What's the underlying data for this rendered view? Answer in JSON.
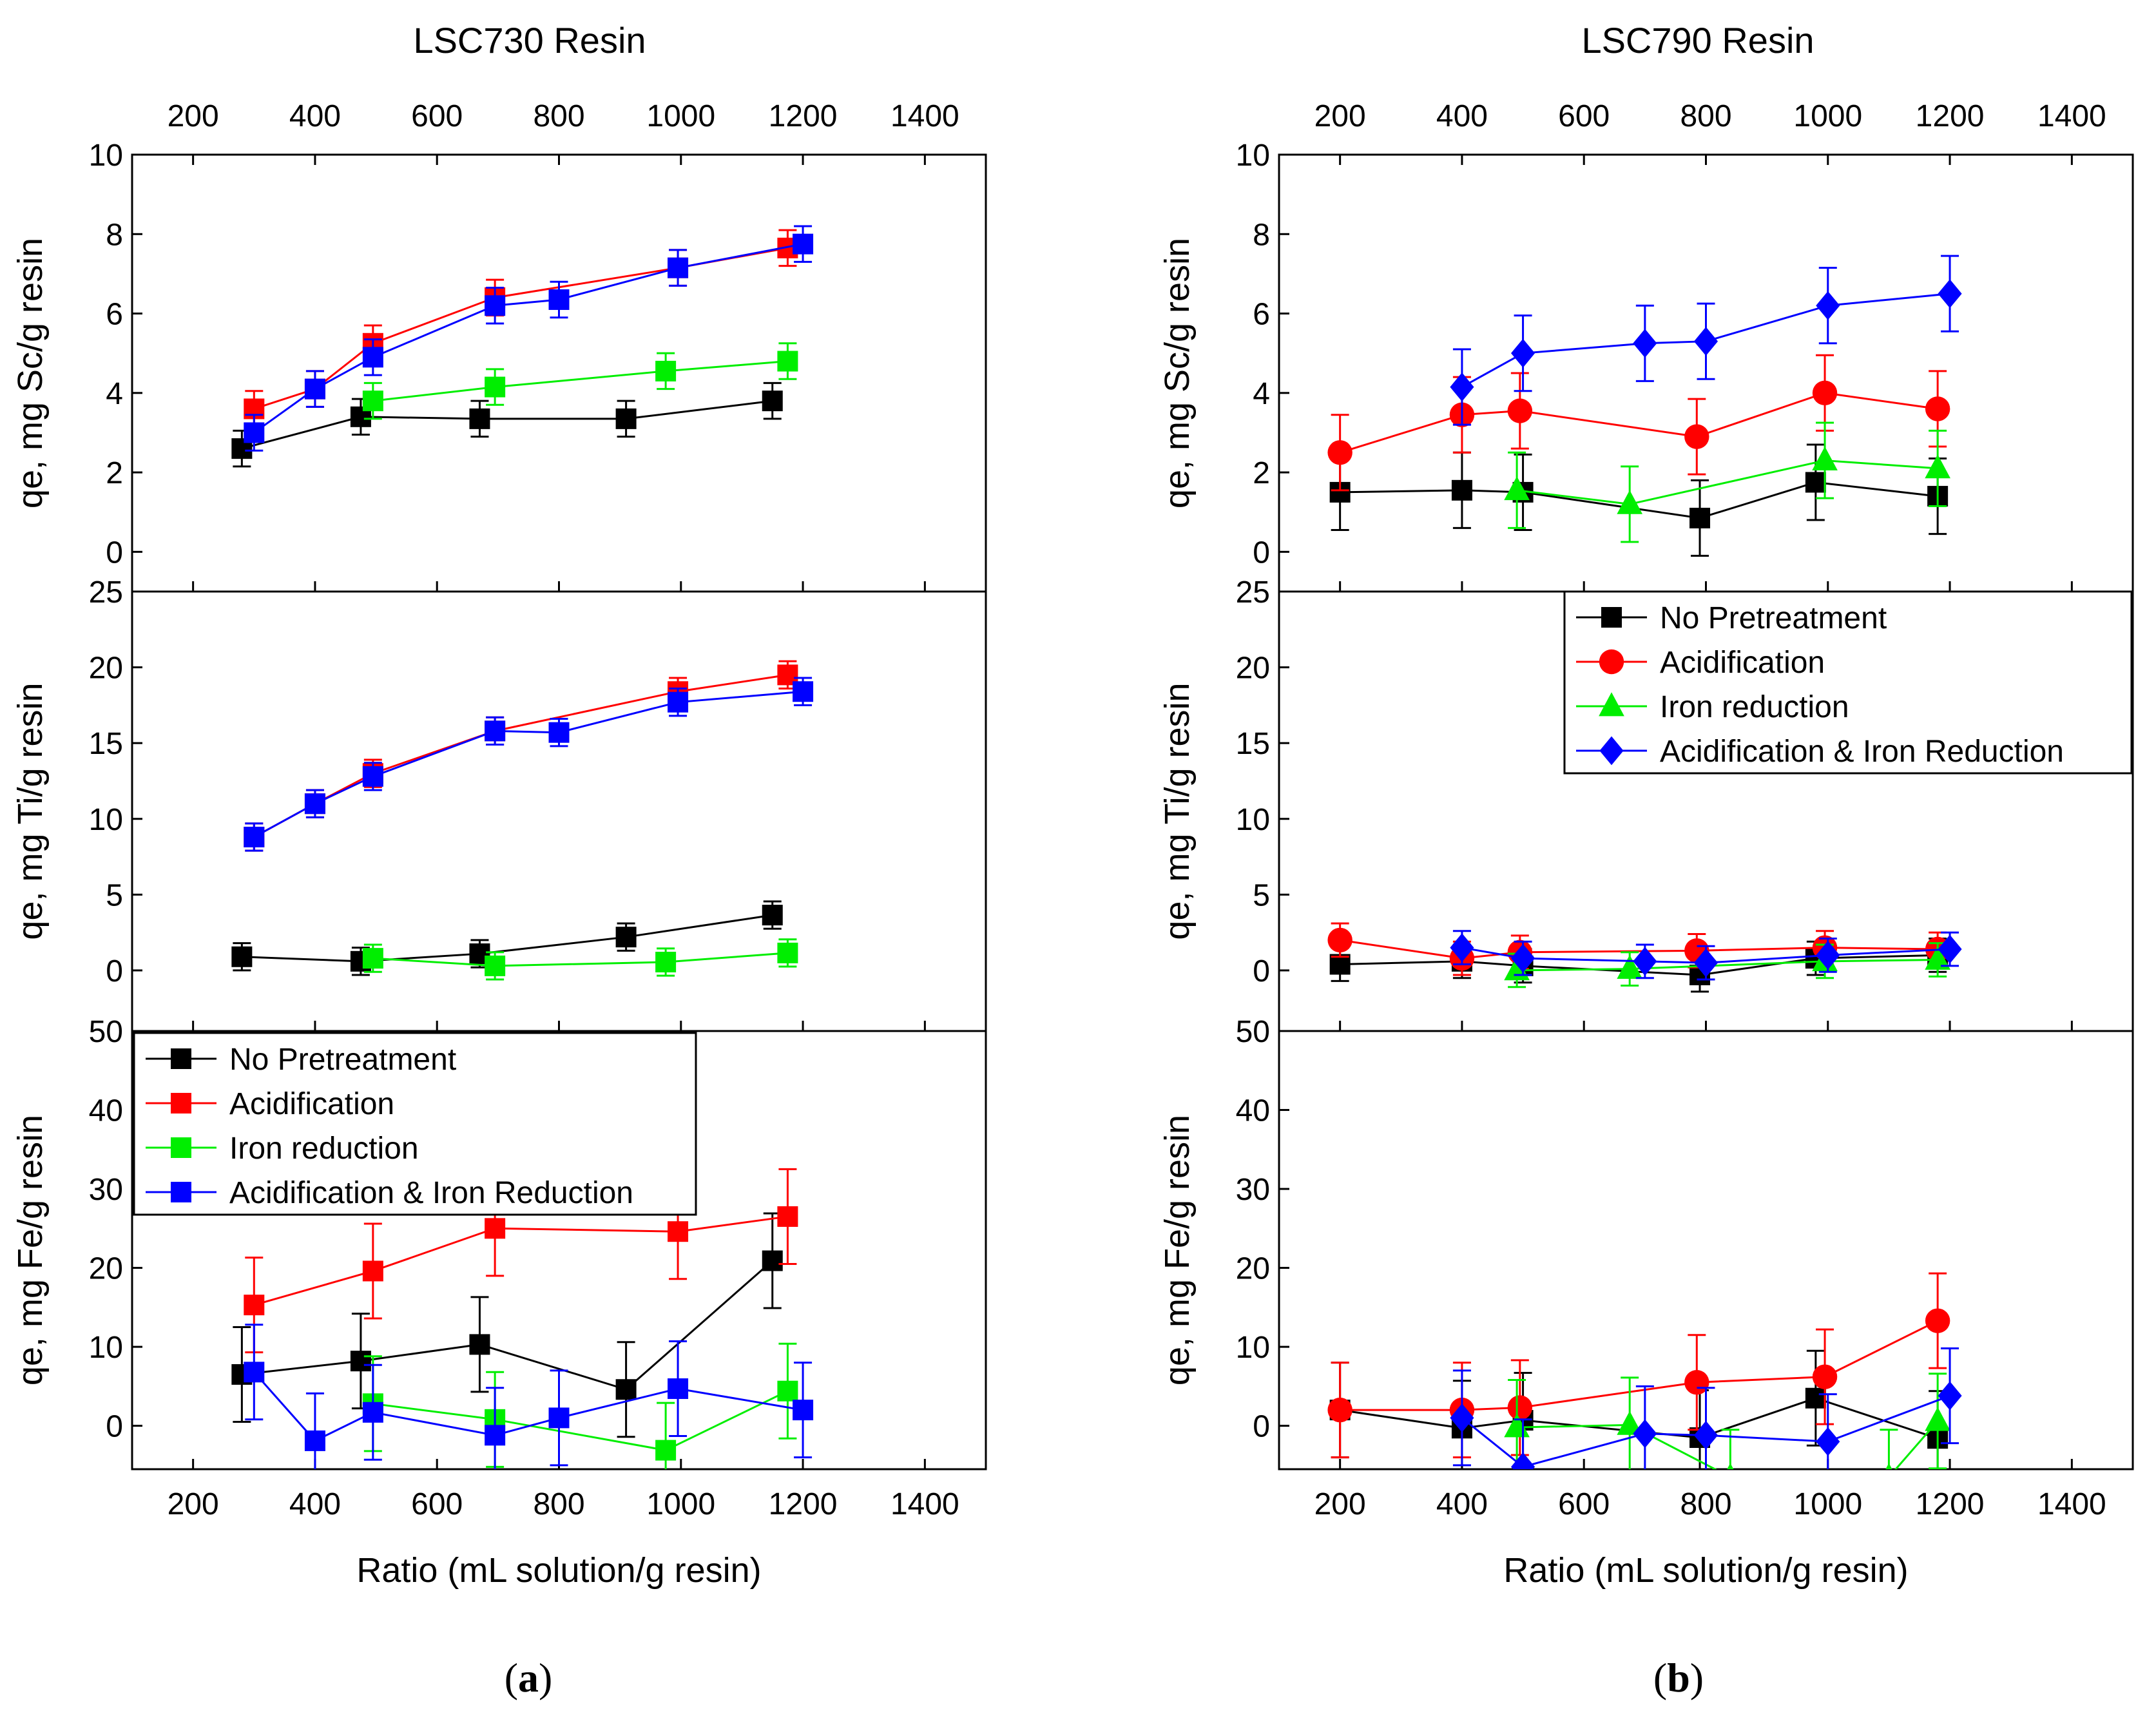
{
  "colors": {
    "No Pretreatment": "#000000",
    "Acidification": "#ff0000",
    "Iron reduction": "#00ee00",
    "Acidification & Iron Reduction": "#0000ff"
  },
  "captions": [
    {
      "open": "(",
      "letter": "a",
      "close": ")"
    },
    {
      "open": "(",
      "letter": "b",
      "close": ")"
    }
  ],
  "chart_data": [
    {
      "id": "a",
      "type": "line",
      "title": "LSC730 Resin",
      "xlabel": "Ratio (mL solution/g resin)",
      "xlim": [
        100,
        1500
      ],
      "xticks": [
        200,
        400,
        600,
        800,
        1000,
        1200,
        1400
      ],
      "marker": {
        "No Pretreatment": "square",
        "Acidification": "square",
        "Iron reduction": "square",
        "Acidification & Iron Reduction": "square"
      },
      "legend_panel": 2,
      "legend_entries": [
        "No Pretreatment",
        "Acidification",
        "Iron reduction",
        "Acidification & Iron Reduction"
      ],
      "panels": [
        {
          "ylabel": "qe, mg Sc/g resin",
          "ylim": [
            -1,
            10
          ],
          "yticks": [
            0,
            2,
            4,
            6,
            8,
            10
          ],
          "series": [
            {
              "name": "No Pretreatment",
              "x": [
                280,
                475,
                670,
                910,
                1150
              ],
              "y": [
                2.6,
                3.4,
                3.35,
                3.35,
                3.8
              ],
              "err": [
                0.45,
                0.45,
                0.45,
                0.45,
                0.45
              ]
            },
            {
              "name": "Acidification",
              "x": [
                300,
                400,
                495,
                695,
                995,
                1175
              ],
              "y": [
                3.6,
                4.1,
                5.25,
                6.4,
                7.15,
                7.65
              ],
              "err": [
                0.45,
                0.45,
                0.45,
                0.45,
                0.45,
                0.45
              ]
            },
            {
              "name": "Iron reduction",
              "x": [
                495,
                695,
                975,
                1175
              ],
              "y": [
                3.8,
                4.15,
                4.55,
                4.8
              ],
              "err": [
                0.45,
                0.45,
                0.45,
                0.45
              ]
            },
            {
              "name": "Acidification & Iron Reduction",
              "x": [
                300,
                400,
                495,
                695,
                800,
                995,
                1200
              ],
              "y": [
                3.0,
                4.1,
                4.9,
                6.2,
                6.35,
                7.15,
                7.75
              ],
              "err": [
                0.45,
                0.45,
                0.45,
                0.45,
                0.45,
                0.45,
                0.45
              ]
            }
          ]
        },
        {
          "ylabel": "qe, mg Ti/g resin",
          "ylim": [
            -4,
            25
          ],
          "yticks": [
            0,
            5,
            10,
            15,
            20,
            25
          ],
          "series": [
            {
              "name": "No Pretreatment",
              "x": [
                280,
                475,
                670,
                910,
                1150
              ],
              "y": [
                0.9,
                0.6,
                1.1,
                2.2,
                3.65
              ],
              "err": [
                0.9,
                0.9,
                0.9,
                0.9,
                0.9
              ]
            },
            {
              "name": "Acidification",
              "x": [
                300,
                400,
                495,
                695,
                995,
                1175
              ],
              "y": [
                8.8,
                11.0,
                13.0,
                15.8,
                18.4,
                19.5
              ],
              "err": [
                0.9,
                0.9,
                0.9,
                0.9,
                0.9,
                0.9
              ]
            },
            {
              "name": "Iron reduction",
              "x": [
                495,
                695,
                975,
                1175
              ],
              "y": [
                0.8,
                0.3,
                0.55,
                1.15
              ],
              "err": [
                0.9,
                0.9,
                0.9,
                0.9
              ]
            },
            {
              "name": "Acidification & Iron Reduction",
              "x": [
                300,
                400,
                495,
                695,
                800,
                995,
                1200
              ],
              "y": [
                8.8,
                11.0,
                12.8,
                15.8,
                15.7,
                17.7,
                18.4
              ],
              "err": [
                0.9,
                0.9,
                0.9,
                0.9,
                0.9,
                0.9,
                0.9
              ]
            }
          ]
        },
        {
          "ylabel": "qe, mg Fe/g resin",
          "ylim": [
            -5.5,
            50
          ],
          "yticks": [
            0,
            10,
            20,
            30,
            40,
            50
          ],
          "series": [
            {
              "name": "No Pretreatment",
              "x": [
                280,
                475,
                670,
                910,
                1150
              ],
              "y": [
                6.5,
                8.2,
                10.3,
                4.6,
                20.9
              ],
              "err": [
                6.0,
                6.0,
                6.0,
                6.0,
                6.0
              ]
            },
            {
              "name": "Acidification",
              "x": [
                300,
                495,
                695,
                995,
                1175
              ],
              "y": [
                15.3,
                19.6,
                25.0,
                24.6,
                26.5
              ],
              "err": [
                6.0,
                6.0,
                6.0,
                6.0,
                6.0
              ]
            },
            {
              "name": "Iron reduction",
              "x": [
                495,
                695,
                975,
                1175
              ],
              "y": [
                2.8,
                0.8,
                -3.1,
                4.4
              ],
              "err": [
                6.0,
                6.0,
                6.0,
                6.0
              ]
            },
            {
              "name": "Acidification & Iron Reduction",
              "x": [
                300,
                400,
                495,
                695,
                800,
                995,
                1200
              ],
              "y": [
                6.8,
                -1.9,
                1.7,
                -1.2,
                1.0,
                4.7,
                2.0
              ],
              "err": [
                6.0,
                6.0,
                6.0,
                6.0,
                6.0,
                6.0,
                6.0
              ]
            }
          ]
        }
      ]
    },
    {
      "id": "b",
      "type": "line",
      "title": "LSC790 Resin",
      "xlabel": "Ratio (mL solution/g resin)",
      "xlim": [
        100,
        1500
      ],
      "xticks": [
        200,
        400,
        600,
        800,
        1000,
        1200,
        1400
      ],
      "marker": {
        "No Pretreatment": "square",
        "Acidification": "circle",
        "Iron reduction": "triangle",
        "Acidification & Iron Reduction": "diamond"
      },
      "legend_panel": 1,
      "legend_entries": [
        "No Pretreatment",
        "Acidification",
        "Iron reduction",
        "Acidification & Iron Reduction"
      ],
      "panels": [
        {
          "ylabel": "qe, mg Sc/g resin",
          "ylim": [
            -1,
            10
          ],
          "yticks": [
            0,
            2,
            4,
            6,
            8,
            10
          ],
          "series": [
            {
              "name": "No Pretreatment",
              "x": [
                200,
                400,
                500,
                790,
                980,
                1180
              ],
              "y": [
                1.5,
                1.55,
                1.5,
                0.85,
                1.75,
                1.4
              ],
              "err": [
                0.95,
                0.95,
                0.95,
                0.95,
                0.95,
                0.95
              ]
            },
            {
              "name": "Acidification",
              "x": [
                200,
                400,
                495,
                785,
                995,
                1180
              ],
              "y": [
                2.5,
                3.45,
                3.55,
                2.9,
                4.0,
                3.6
              ],
              "err": [
                0.95,
                0.95,
                0.95,
                0.95,
                0.95,
                0.95
              ]
            },
            {
              "name": "Iron reduction",
              "x": [
                490,
                675,
                995,
                1180
              ],
              "y": [
                1.55,
                1.2,
                2.3,
                2.1
              ],
              "err": [
                0.95,
                0.95,
                0.95,
                0.95
              ]
            },
            {
              "name": "Acidification & Iron Reduction",
              "x": [
                400,
                500,
                700,
                800,
                1000,
                1200
              ],
              "y": [
                4.15,
                5.0,
                5.25,
                5.3,
                6.2,
                6.5
              ],
              "err": [
                0.95,
                0.95,
                0.95,
                0.95,
                0.95,
                0.95
              ]
            }
          ]
        },
        {
          "ylabel": "qe, mg Ti/g resin",
          "ylim": [
            -4,
            25
          ],
          "yticks": [
            0,
            5,
            10,
            15,
            20,
            25
          ],
          "series": [
            {
              "name": "No Pretreatment",
              "x": [
                200,
                400,
                500,
                790,
                980,
                1180
              ],
              "y": [
                0.4,
                0.6,
                0.3,
                -0.3,
                0.8,
                1.0
              ],
              "err": [
                1.1,
                1.1,
                1.1,
                1.1,
                1.1,
                1.1
              ]
            },
            {
              "name": "Acidification",
              "x": [
                200,
                400,
                495,
                785,
                995,
                1180
              ],
              "y": [
                2.0,
                0.8,
                1.2,
                1.3,
                1.5,
                1.4
              ],
              "err": [
                1.1,
                1.1,
                1.1,
                1.1,
                1.1,
                1.1
              ]
            },
            {
              "name": "Iron reduction",
              "x": [
                490,
                675,
                995,
                1180
              ],
              "y": [
                0.0,
                0.1,
                0.6,
                0.7
              ],
              "err": [
                1.1,
                1.1,
                1.1,
                1.1
              ]
            },
            {
              "name": "Acidification & Iron Reduction",
              "x": [
                400,
                500,
                700,
                800,
                1000,
                1200
              ],
              "y": [
                1.5,
                0.8,
                0.6,
                0.5,
                1.0,
                1.4
              ],
              "err": [
                1.1,
                1.1,
                1.1,
                1.1,
                1.1,
                1.1
              ]
            }
          ]
        },
        {
          "ylabel": "qe, mg Fe/g resin",
          "ylim": [
            -5.5,
            50
          ],
          "yticks": [
            0,
            10,
            20,
            30,
            40,
            50
          ],
          "series": [
            {
              "name": "No Pretreatment",
              "x": [
                200,
                400,
                500,
                790,
                980,
                1180
              ],
              "y": [
                2.0,
                -0.3,
                0.7,
                -1.5,
                3.5,
                -1.6
              ],
              "err": [
                6.0,
                6.0,
                6.0,
                6.0,
                6.0,
                6.0
              ]
            },
            {
              "name": "Acidification",
              "x": [
                200,
                400,
                495,
                785,
                995,
                1180
              ],
              "y": [
                2.0,
                2.0,
                2.3,
                5.5,
                6.2,
                13.3
              ],
              "err": [
                6.0,
                6.0,
                6.0,
                6.0,
                6.0,
                6.0
              ]
            },
            {
              "name": "Iron reduction",
              "x": [
                490,
                675,
                840,
                1100,
                1180
              ],
              "y": [
                -0.2,
                0.1,
                -6.5,
                -6.5,
                0.6
              ],
              "err": [
                6.0,
                6.0,
                6.0,
                6.0,
                6.0
              ]
            },
            {
              "name": "Acidification & Iron Reduction",
              "x": [
                400,
                500,
                700,
                800,
                1000,
                1200
              ],
              "y": [
                1.0,
                -5.2,
                -1.0,
                -1.2,
                -2.0,
                3.8
              ],
              "err": [
                6.0,
                6.0,
                6.0,
                6.0,
                6.0,
                6.0
              ]
            }
          ]
        }
      ]
    }
  ]
}
